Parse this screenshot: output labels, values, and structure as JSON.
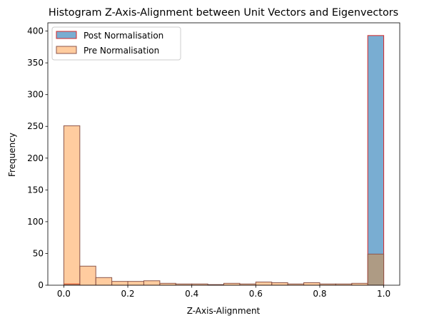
{
  "chart_data": {
    "type": "bar",
    "title": "Histogram Z-Axis-Alignment between Unit Vectors and Eigenvectors",
    "xlabel": "Z-Axis-Alignment",
    "ylabel": "Frequency",
    "xlim": [
      -0.05,
      1.05
    ],
    "ylim": [
      0,
      413
    ],
    "xticks": [
      "0.0",
      "0.2",
      "0.4",
      "0.6",
      "0.8",
      "1.0"
    ],
    "yticks": [
      "0",
      "50",
      "100",
      "150",
      "200",
      "250",
      "300",
      "350",
      "400"
    ],
    "bin_edges": [
      0.0,
      0.05,
      0.1,
      0.15,
      0.2,
      0.25,
      0.3,
      0.35,
      0.4,
      0.45,
      0.5,
      0.55,
      0.6,
      0.65,
      0.7,
      0.75,
      0.8,
      0.85,
      0.9,
      0.95,
      1.0
    ],
    "legend_position": "top-left",
    "series": [
      {
        "name": "Post Normalisation",
        "fill": "#1f77b4",
        "fill_opacity": 0.6,
        "edge": "#d62728",
        "values": [
          2,
          0,
          0,
          0,
          0,
          0,
          0,
          0,
          0,
          0,
          0,
          0,
          0,
          0,
          0,
          0,
          0,
          0,
          0,
          393
        ]
      },
      {
        "name": "Pre Normalisation",
        "fill": "#ff7f0e",
        "fill_opacity": 0.4,
        "edge": "#8c564b",
        "values": [
          251,
          30,
          12,
          6,
          6,
          7,
          3,
          2,
          2,
          1,
          3,
          2,
          5,
          4,
          2,
          4,
          2,
          2,
          3,
          49
        ]
      }
    ]
  }
}
